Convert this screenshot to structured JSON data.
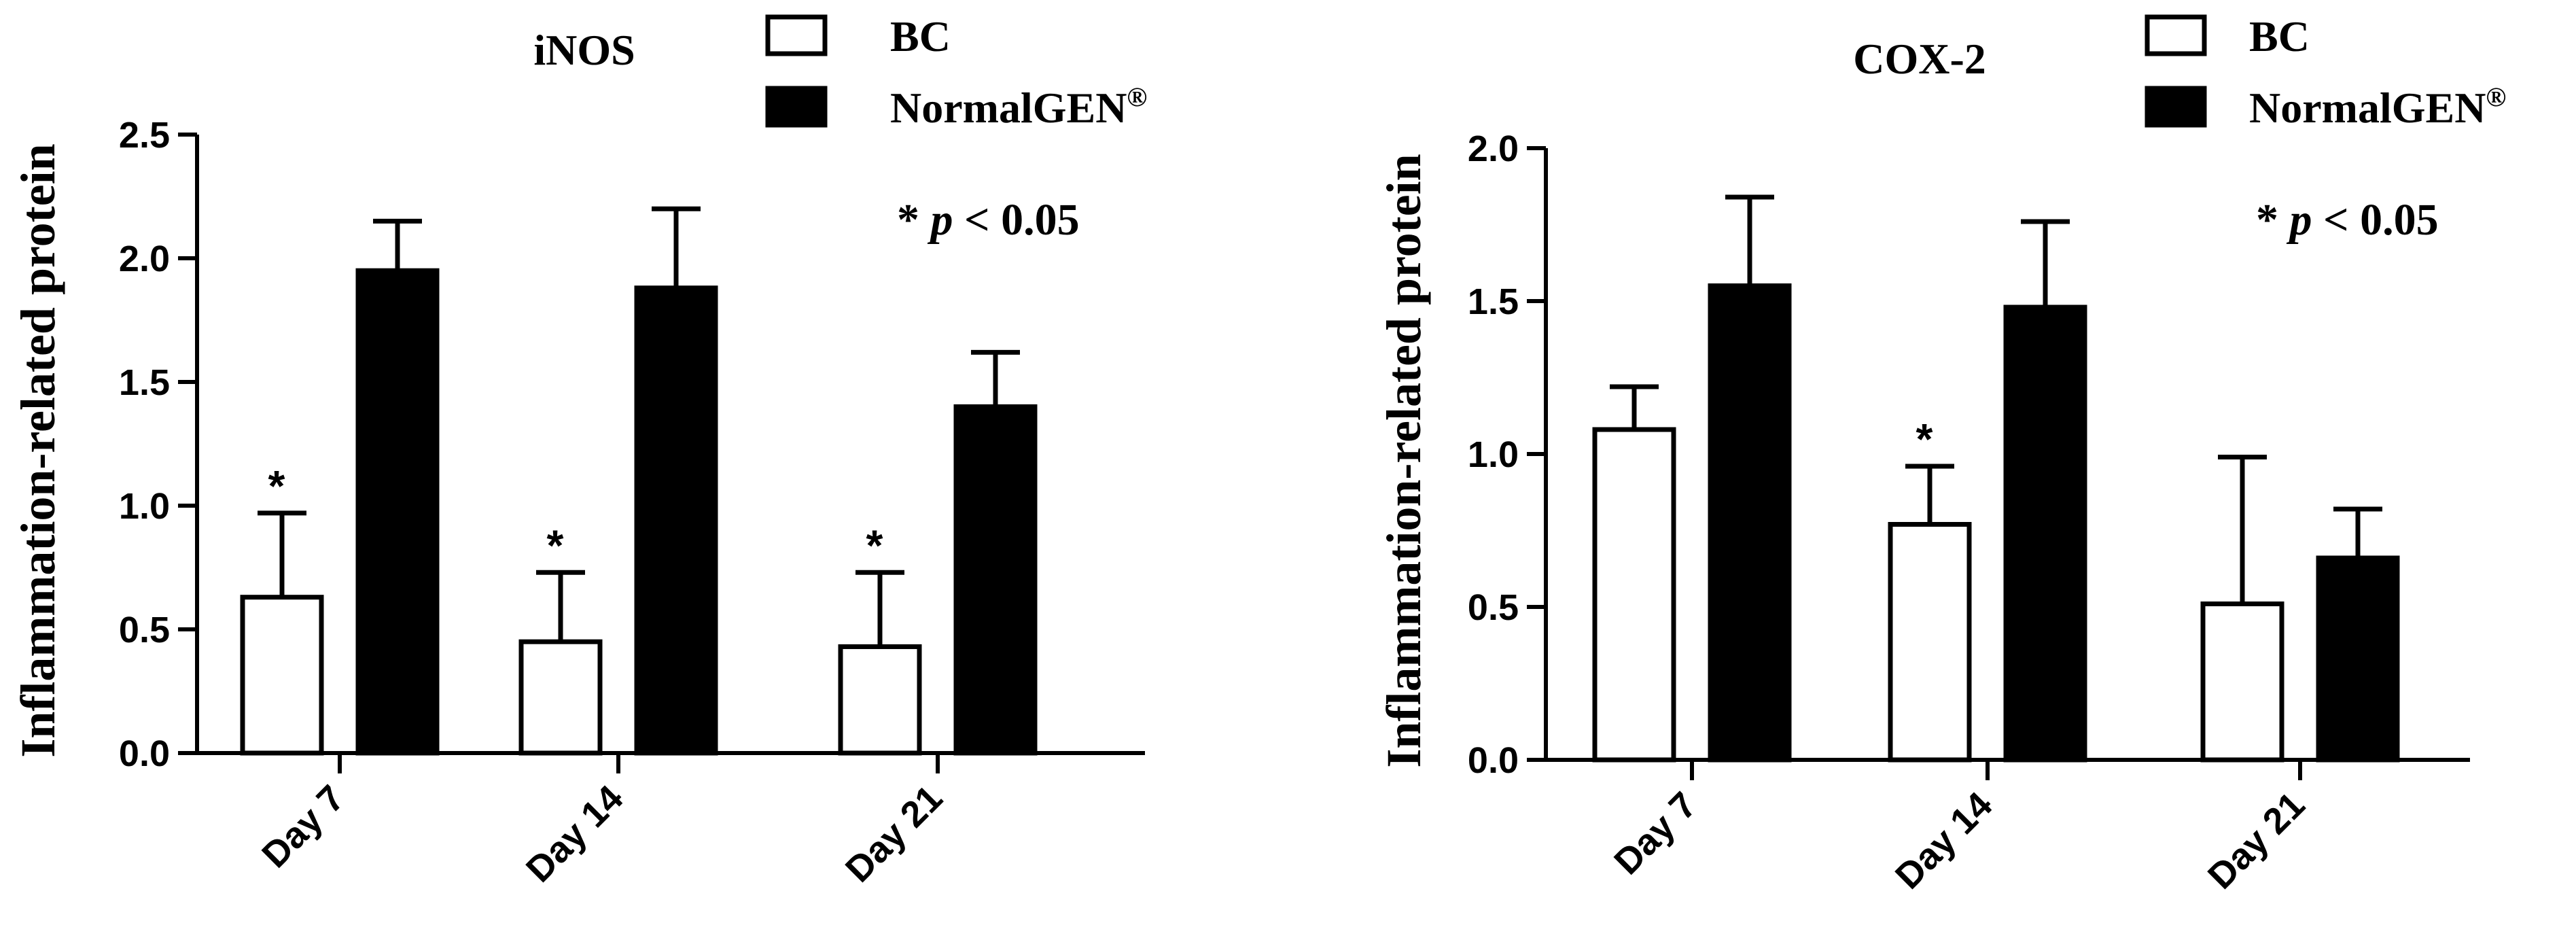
{
  "chart_data": [
    {
      "type": "bar",
      "title": "iNOS",
      "ylabel": "Inflammation-related protein",
      "xlabel": "",
      "categories": [
        "Day 7",
        "Day 14",
        "Day 21"
      ],
      "ylim": [
        0,
        2.5
      ],
      "yticks": [
        "0.0",
        "0.5",
        "1.0",
        "1.5",
        "2.0",
        "2.5"
      ],
      "series": [
        {
          "name": "BC",
          "values": [
            0.63,
            0.45,
            0.43
          ],
          "errors": [
            0.34,
            0.28,
            0.3
          ],
          "fill": "#ffffff"
        },
        {
          "name": "NormalGEN",
          "values": [
            1.95,
            1.88,
            1.4
          ],
          "errors": [
            0.2,
            0.32,
            0.22
          ],
          "fill": "#000000"
        }
      ],
      "significance": [
        "*",
        "*",
        "*"
      ],
      "annotation_star": "* ",
      "annotation_p": "p",
      "annotation_rest": " < 0.05",
      "legend_sup": "®",
      "legend_position": "top-right",
      "grid": false
    },
    {
      "type": "bar",
      "title": "COX-2",
      "ylabel": "Inflammation-related protein",
      "xlabel": "",
      "categories": [
        "Day 7",
        "Day 14",
        "Day 21"
      ],
      "ylim": [
        0,
        2.0
      ],
      "yticks": [
        "0.0",
        "0.5",
        "1.0",
        "1.5",
        "2.0"
      ],
      "series": [
        {
          "name": "BC",
          "values": [
            1.08,
            0.77,
            0.51
          ],
          "errors": [
            0.14,
            0.19,
            0.48
          ],
          "fill": "#ffffff"
        },
        {
          "name": "NormalGEN",
          "values": [
            1.55,
            1.48,
            0.66
          ],
          "errors": [
            0.29,
            0.28,
            0.16
          ],
          "fill": "#000000"
        }
      ],
      "significance": [
        "",
        "*",
        ""
      ],
      "annotation_star": "* ",
      "annotation_p": "p",
      "annotation_rest": " < 0.05",
      "legend_sup": "®",
      "legend_position": "top-right",
      "grid": false
    }
  ]
}
